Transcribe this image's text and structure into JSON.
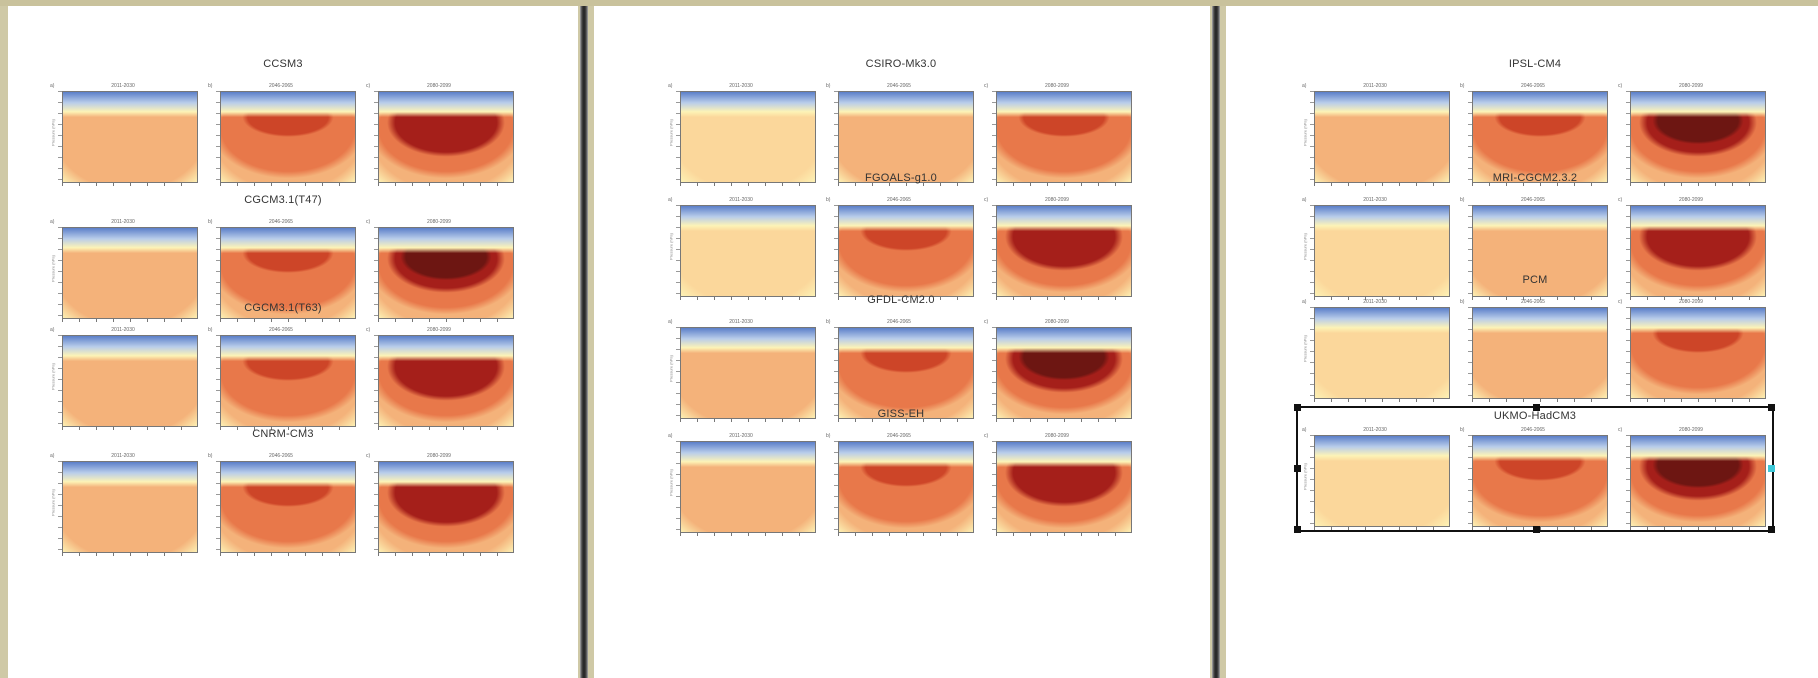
{
  "pages": [
    {
      "models": [
        {
          "title": "CCSM3",
          "panels": [
            {
              "letter": "a)",
              "period": "2011-2030",
              "intensity": 1
            },
            {
              "letter": "b)",
              "period": "2046-2065",
              "intensity": 2
            },
            {
              "letter": "c)",
              "period": "2080-2099",
              "intensity": 3
            }
          ]
        },
        {
          "title": "CGCM3.1(T47)",
          "panels": [
            {
              "letter": "a)",
              "period": "2011-2030",
              "intensity": 1
            },
            {
              "letter": "b)",
              "period": "2046-2065",
              "intensity": 2
            },
            {
              "letter": "c)",
              "period": "2080-2099",
              "intensity": 4
            }
          ]
        },
        {
          "title": "CGCM3.1(T63)",
          "panels": [
            {
              "letter": "a)",
              "period": "2011-2030",
              "intensity": 1
            },
            {
              "letter": "b)",
              "period": "2046-2065",
              "intensity": 2
            },
            {
              "letter": "c)",
              "period": "2080-2099",
              "intensity": 3
            }
          ]
        },
        {
          "title": "CNRM-CM3",
          "panels": [
            {
              "letter": "a)",
              "period": "2011-2030",
              "intensity": 1
            },
            {
              "letter": "b)",
              "period": "2046-2065",
              "intensity": 2
            },
            {
              "letter": "c)",
              "period": "2080-2099",
              "intensity": 3
            }
          ]
        }
      ]
    },
    {
      "models": [
        {
          "title": "CSIRO-Mk3.0",
          "panels": [
            {
              "letter": "a)",
              "period": "2011-2030",
              "intensity": 0
            },
            {
              "letter": "b)",
              "period": "2046-2065",
              "intensity": 1
            },
            {
              "letter": "c)",
              "period": "2080-2099",
              "intensity": 2
            }
          ]
        },
        {
          "title": "FGOALS-g1.0",
          "panels": [
            {
              "letter": "a)",
              "period": "2011-2030",
              "intensity": 0
            },
            {
              "letter": "b)",
              "period": "2046-2065",
              "intensity": 2
            },
            {
              "letter": "c)",
              "period": "2080-2099",
              "intensity": 3
            }
          ]
        },
        {
          "title": "GFDL-CM2.0",
          "panels": [
            {
              "letter": "a)",
              "period": "2011-2030",
              "intensity": 1
            },
            {
              "letter": "b)",
              "period": "2046-2065",
              "intensity": 2
            },
            {
              "letter": "c)",
              "period": "2080-2099",
              "intensity": 4
            }
          ]
        },
        {
          "title": "GISS-EH",
          "panels": [
            {
              "letter": "a)",
              "period": "2011-2030",
              "intensity": 1
            },
            {
              "letter": "b)",
              "period": "2046-2065",
              "intensity": 2
            },
            {
              "letter": "c)",
              "period": "2080-2099",
              "intensity": 3
            }
          ]
        }
      ]
    },
    {
      "models": [
        {
          "title": "IPSL-CM4",
          "panels": [
            {
              "letter": "a)",
              "period": "2011-2030",
              "intensity": 1
            },
            {
              "letter": "b)",
              "period": "2046-2065",
              "intensity": 2
            },
            {
              "letter": "c)",
              "period": "2080-2099",
              "intensity": 4
            }
          ]
        },
        {
          "title": "MRI-CGCM2.3.2",
          "panels": [
            {
              "letter": "a)",
              "period": "2011-2030",
              "intensity": 0
            },
            {
              "letter": "b)",
              "period": "2046-2065",
              "intensity": 1
            },
            {
              "letter": "c)",
              "period": "2080-2099",
              "intensity": 3
            }
          ]
        },
        {
          "title": "PCM",
          "panels": [
            {
              "letter": "a)",
              "period": "2011-2030",
              "intensity": 0
            },
            {
              "letter": "b)",
              "period": "2046-2065",
              "intensity": 1
            },
            {
              "letter": "c)",
              "period": "2080-2099",
              "intensity": 2
            }
          ]
        },
        {
          "title": "UKMO-HadCM3",
          "selected": true,
          "panels": [
            {
              "letter": "a)",
              "period": "2011-2030",
              "intensity": 0
            },
            {
              "letter": "b)",
              "period": "2046-2065",
              "intensity": 2
            },
            {
              "letter": "c)",
              "period": "2080-2099",
              "intensity": 4
            }
          ]
        }
      ]
    }
  ],
  "y_axis_title": "Pressure (hPa)",
  "palette": {
    "blue_top": "#5b7fc9",
    "blue_light": "#b9cdea",
    "yellow": "#fdf3b6",
    "pale": "#fbd79b",
    "light": "#f4b27a",
    "mid": "#e8784a",
    "strong": "#cd4528",
    "dark": "#a51f1a",
    "darkest": "#6d1612"
  }
}
